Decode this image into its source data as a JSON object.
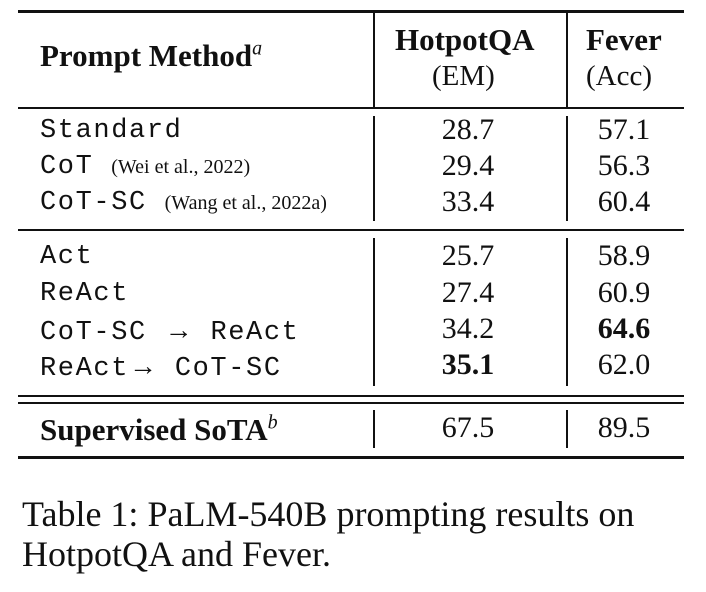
{
  "table": {
    "caption": "Table 1: PaLM-540B prompting results on HotpotQA and Fever.",
    "header": {
      "method_label": "Prompt Method",
      "method_sup": "a",
      "col1_title": "HotpotQA",
      "col1_metric": "(EM)",
      "col2_title": "Fever",
      "col2_metric": "(Acc)"
    },
    "group1": [
      {
        "method": "Standard",
        "cite": "",
        "hotpotqa": "28.7",
        "fever": "57.1"
      },
      {
        "method": "CoT",
        "cite": "(Wei et al., 2022)",
        "hotpotqa": "29.4",
        "fever": "56.3"
      },
      {
        "method": "CoT-SC",
        "cite": "(Wang et al., 2022a)",
        "hotpotqa": "33.4",
        "fever": "60.4"
      }
    ],
    "group2": [
      {
        "method": "Act",
        "hotpotqa": "25.7",
        "fever": "58.9"
      },
      {
        "method": "ReAct",
        "hotpotqa": "27.4",
        "fever": "60.9"
      },
      {
        "method_a": "CoT-SC",
        "arrow": "→",
        "method_b": "ReAct",
        "hotpotqa": "34.2",
        "fever": "64.6"
      },
      {
        "method_a": "ReAct",
        "arrow": "→",
        "method_b": "CoT-SC",
        "hotpotqa": "35.1",
        "fever": "62.0"
      }
    ],
    "supervised": {
      "label": "Supervised SoTA",
      "sup": "b",
      "hotpotqa": "67.5",
      "fever": "89.5"
    }
  }
}
